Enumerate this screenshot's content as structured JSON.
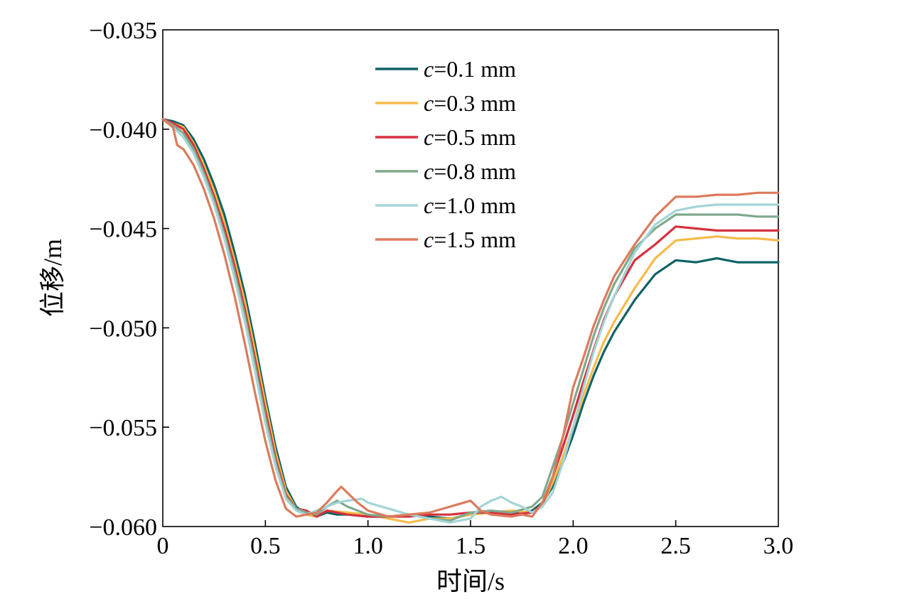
{
  "chart_data": {
    "type": "line",
    "xlabel": "时间/s",
    "ylabel": "位移/m",
    "xlim": [
      0,
      3.0
    ],
    "ylim": [
      -0.06,
      -0.035
    ],
    "xticks": [
      0,
      0.5,
      1.0,
      1.5,
      2.0,
      2.5,
      3.0
    ],
    "xtick_labels": [
      "0",
      "0.5",
      "1.0",
      "1.5",
      "2.0",
      "2.5",
      "3.0"
    ],
    "yticks": [
      -0.035,
      -0.04,
      -0.045,
      -0.05,
      -0.055,
      -0.06
    ],
    "ytick_labels": [
      "−0.035",
      "−0.040",
      "−0.045",
      "−0.050",
      "−0.055",
      "−0.060"
    ],
    "grid": false,
    "legend": "top-center",
    "series": [
      {
        "name": "c=0.1 mm",
        "legend_var": "c",
        "legend_rest": "=0.1 mm",
        "color": "#0f6366",
        "x": [
          0,
          0.05,
          0.1,
          0.15,
          0.2,
          0.25,
          0.3,
          0.35,
          0.4,
          0.45,
          0.5,
          0.55,
          0.6,
          0.65,
          0.7,
          0.75,
          0.8,
          0.85,
          0.9,
          1.0,
          1.1,
          1.2,
          1.3,
          1.4,
          1.5,
          1.6,
          1.7,
          1.8,
          1.85,
          1.9,
          1.95,
          2.0,
          2.05,
          2.1,
          2.15,
          2.2,
          2.3,
          2.4,
          2.5,
          2.6,
          2.7,
          2.8,
          2.9,
          3.0
        ],
        "y": [
          -0.0395,
          -0.0396,
          -0.0398,
          -0.0405,
          -0.0415,
          -0.0428,
          -0.0443,
          -0.0462,
          -0.0483,
          -0.0508,
          -0.0535,
          -0.056,
          -0.058,
          -0.059,
          -0.0594,
          -0.0595,
          -0.0593,
          -0.0594,
          -0.0594,
          -0.0595,
          -0.0595,
          -0.0594,
          -0.0595,
          -0.0596,
          -0.0594,
          -0.0593,
          -0.0594,
          -0.0592,
          -0.0588,
          -0.058,
          -0.0568,
          -0.0554,
          -0.0538,
          -0.0524,
          -0.0512,
          -0.0502,
          -0.0486,
          -0.0473,
          -0.0466,
          -0.0467,
          -0.0465,
          -0.0467,
          -0.0467,
          -0.0467
        ]
      },
      {
        "name": "c=0.3 mm",
        "legend_var": "c",
        "legend_rest": "=0.3 mm",
        "color": "#f5bb4a",
        "x": [
          0,
          0.05,
          0.1,
          0.15,
          0.2,
          0.25,
          0.3,
          0.35,
          0.4,
          0.45,
          0.5,
          0.55,
          0.6,
          0.65,
          0.7,
          0.75,
          0.8,
          0.9,
          1.0,
          1.1,
          1.2,
          1.3,
          1.4,
          1.5,
          1.6,
          1.7,
          1.8,
          1.85,
          1.9,
          1.95,
          2.0,
          2.05,
          2.1,
          2.15,
          2.2,
          2.3,
          2.4,
          2.5,
          2.6,
          2.7,
          2.8,
          2.9,
          3.0
        ],
        "y": [
          -0.0395,
          -0.0397,
          -0.0399,
          -0.0407,
          -0.0418,
          -0.0431,
          -0.0447,
          -0.0466,
          -0.0487,
          -0.0512,
          -0.0538,
          -0.0563,
          -0.0582,
          -0.0591,
          -0.0594,
          -0.0595,
          -0.0592,
          -0.0593,
          -0.0594,
          -0.0596,
          -0.0598,
          -0.0596,
          -0.0596,
          -0.0594,
          -0.0593,
          -0.0592,
          -0.0593,
          -0.0589,
          -0.0578,
          -0.0565,
          -0.055,
          -0.0534,
          -0.052,
          -0.0507,
          -0.0497,
          -0.048,
          -0.0465,
          -0.0456,
          -0.0455,
          -0.0454,
          -0.0455,
          -0.0455,
          -0.0456
        ]
      },
      {
        "name": "c=0.5 mm",
        "legend_var": "c",
        "legend_rest": "=0.5 mm",
        "color": "#d6303e",
        "x": [
          0,
          0.05,
          0.1,
          0.15,
          0.2,
          0.25,
          0.3,
          0.35,
          0.4,
          0.45,
          0.5,
          0.55,
          0.6,
          0.65,
          0.7,
          0.75,
          0.8,
          0.9,
          1.0,
          1.1,
          1.2,
          1.3,
          1.4,
          1.5,
          1.6,
          1.7,
          1.8,
          1.85,
          1.9,
          1.95,
          2.0,
          2.05,
          2.1,
          2.15,
          2.2,
          2.3,
          2.4,
          2.5,
          2.6,
          2.7,
          2.8,
          2.9,
          3.0
        ],
        "y": [
          -0.0395,
          -0.0397,
          -0.04,
          -0.0408,
          -0.042,
          -0.0434,
          -0.045,
          -0.0469,
          -0.0491,
          -0.0516,
          -0.0542,
          -0.0566,
          -0.0584,
          -0.0591,
          -0.0592,
          -0.0595,
          -0.0592,
          -0.0594,
          -0.0595,
          -0.0595,
          -0.0595,
          -0.0594,
          -0.0594,
          -0.0593,
          -0.0593,
          -0.0594,
          -0.0593,
          -0.0589,
          -0.0575,
          -0.056,
          -0.0544,
          -0.0527,
          -0.0511,
          -0.0496,
          -0.0484,
          -0.0466,
          -0.0458,
          -0.0449,
          -0.045,
          -0.0451,
          -0.0451,
          -0.0451,
          -0.0451
        ]
      },
      {
        "name": "c=0.8 mm",
        "legend_var": "c",
        "legend_rest": "=0.8 mm",
        "color": "#7fa98d",
        "x": [
          0,
          0.05,
          0.1,
          0.15,
          0.2,
          0.25,
          0.3,
          0.35,
          0.4,
          0.45,
          0.5,
          0.55,
          0.6,
          0.65,
          0.7,
          0.75,
          0.8,
          0.85,
          0.9,
          1.0,
          1.1,
          1.2,
          1.3,
          1.4,
          1.5,
          1.6,
          1.7,
          1.8,
          1.85,
          1.9,
          1.95,
          2.0,
          2.05,
          2.1,
          2.15,
          2.2,
          2.3,
          2.4,
          2.5,
          2.6,
          2.7,
          2.8,
          2.9,
          3.0
        ],
        "y": [
          -0.0395,
          -0.0398,
          -0.0402,
          -0.041,
          -0.0422,
          -0.0436,
          -0.0453,
          -0.0472,
          -0.0494,
          -0.0519,
          -0.0545,
          -0.0568,
          -0.0585,
          -0.0591,
          -0.0593,
          -0.0594,
          -0.059,
          -0.0587,
          -0.059,
          -0.0594,
          -0.0595,
          -0.0594,
          -0.0596,
          -0.0597,
          -0.0593,
          -0.0592,
          -0.0593,
          -0.059,
          -0.0585,
          -0.057,
          -0.0555,
          -0.0538,
          -0.0521,
          -0.0504,
          -0.049,
          -0.0478,
          -0.046,
          -0.045,
          -0.0443,
          -0.0443,
          -0.0443,
          -0.0443,
          -0.0444,
          -0.0444
        ]
      },
      {
        "name": "c=1.0 mm",
        "legend_var": "c",
        "legend_rest": "=1.0 mm",
        "color": "#a3d4d7",
        "x": [
          0,
          0.05,
          0.1,
          0.15,
          0.2,
          0.25,
          0.3,
          0.35,
          0.4,
          0.45,
          0.5,
          0.55,
          0.6,
          0.65,
          0.7,
          0.75,
          0.8,
          0.85,
          0.9,
          0.97,
          1.0,
          1.1,
          1.2,
          1.3,
          1.4,
          1.5,
          1.55,
          1.6,
          1.65,
          1.7,
          1.75,
          1.8,
          1.85,
          1.9,
          1.95,
          2.0,
          2.05,
          2.1,
          2.15,
          2.2,
          2.3,
          2.4,
          2.5,
          2.6,
          2.7,
          2.8,
          2.9,
          3.0
        ],
        "y": [
          -0.0395,
          -0.0399,
          -0.0404,
          -0.0412,
          -0.0424,
          -0.0438,
          -0.0455,
          -0.0475,
          -0.0497,
          -0.0522,
          -0.0548,
          -0.057,
          -0.0586,
          -0.0592,
          -0.0594,
          -0.0592,
          -0.059,
          -0.0588,
          -0.0587,
          -0.0586,
          -0.0588,
          -0.0591,
          -0.0594,
          -0.0596,
          -0.0598,
          -0.0596,
          -0.059,
          -0.0587,
          -0.0585,
          -0.0588,
          -0.059,
          -0.0593,
          -0.059,
          -0.0583,
          -0.0568,
          -0.055,
          -0.053,
          -0.0512,
          -0.0497,
          -0.0484,
          -0.0462,
          -0.0448,
          -0.0441,
          -0.0439,
          -0.0438,
          -0.0438,
          -0.0438,
          -0.0438
        ]
      },
      {
        "name": "c=1.5 mm",
        "legend_var": "c",
        "legend_rest": "=1.5 mm",
        "color": "#dc7a5c",
        "x": [
          0,
          0.05,
          0.07,
          0.1,
          0.15,
          0.2,
          0.25,
          0.3,
          0.35,
          0.4,
          0.45,
          0.5,
          0.55,
          0.6,
          0.65,
          0.7,
          0.75,
          0.8,
          0.85,
          0.87,
          0.95,
          1.0,
          1.1,
          1.2,
          1.3,
          1.4,
          1.5,
          1.55,
          1.6,
          1.7,
          1.75,
          1.8,
          1.85,
          1.9,
          1.95,
          2.0,
          2.05,
          2.1,
          2.15,
          2.2,
          2.3,
          2.4,
          2.5,
          2.6,
          2.7,
          2.8,
          2.9,
          3.0
        ],
        "y": [
          -0.0395,
          -0.0399,
          -0.0408,
          -0.041,
          -0.0418,
          -0.043,
          -0.0445,
          -0.0463,
          -0.0484,
          -0.0508,
          -0.0533,
          -0.0557,
          -0.0577,
          -0.0591,
          -0.0595,
          -0.0594,
          -0.0593,
          -0.0588,
          -0.0582,
          -0.058,
          -0.0588,
          -0.0592,
          -0.0595,
          -0.0594,
          -0.0593,
          -0.059,
          -0.0587,
          -0.0592,
          -0.0594,
          -0.0595,
          -0.0594,
          -0.0595,
          -0.0588,
          -0.0575,
          -0.0555,
          -0.053,
          -0.0515,
          -0.0499,
          -0.0486,
          -0.0474,
          -0.0458,
          -0.0444,
          -0.0434,
          -0.0434,
          -0.0433,
          -0.0433,
          -0.0432,
          -0.0432
        ]
      }
    ]
  }
}
